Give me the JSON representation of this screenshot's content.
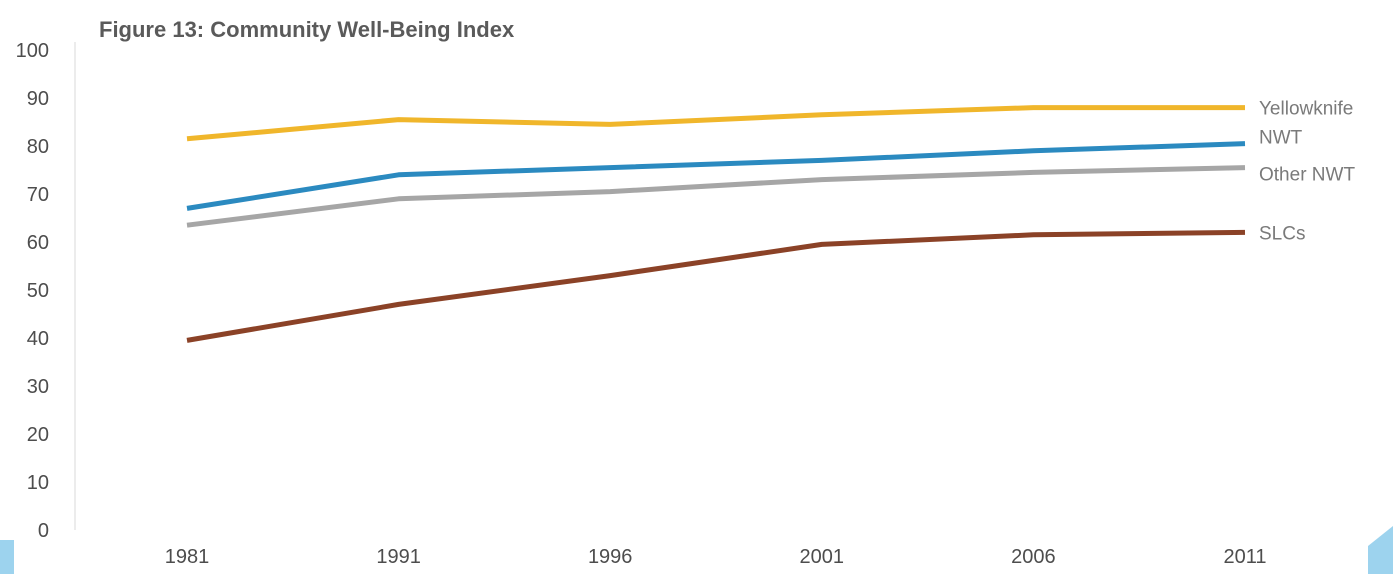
{
  "chart_data": {
    "type": "line",
    "title": "Figure 13: Community Well-Being Index",
    "xlabel": "",
    "ylabel": "",
    "categories": [
      "1981",
      "1991",
      "1996",
      "2001",
      "2006",
      "2011"
    ],
    "ylim": [
      0,
      100
    ],
    "yticks": [
      0,
      10,
      20,
      30,
      40,
      50,
      60,
      70,
      80,
      90,
      100
    ],
    "grid": false,
    "legend": "inline-right",
    "series": [
      {
        "name": "Yellowknife",
        "color": "#F0B62B",
        "values": [
          81.5,
          85.5,
          84.5,
          86.5,
          88,
          88
        ]
      },
      {
        "name": "NWT",
        "color": "#2B8AC0",
        "values": [
          67,
          74,
          75.5,
          77,
          79,
          80.5
        ]
      },
      {
        "name": "Other NWT",
        "color": "#A6A6A6",
        "values": [
          63.5,
          69,
          70.5,
          73,
          74.5,
          75.5
        ]
      },
      {
        "name": "SLCs",
        "color": "#8B4227",
        "values": [
          39.5,
          47,
          53,
          59.5,
          61.5,
          62
        ]
      }
    ]
  }
}
